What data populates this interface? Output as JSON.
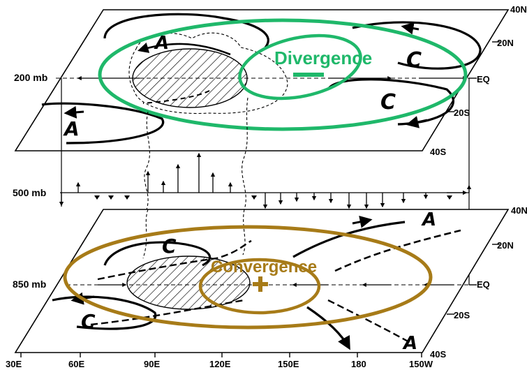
{
  "levels": {
    "upper": "200 mb",
    "middle": "500 mb",
    "lower": "850 mb"
  },
  "latitudes_upper": [
    "40N",
    "20N",
    "EQ",
    "20S",
    "40S"
  ],
  "latitudes_lower": [
    "40N",
    "20N",
    "EQ",
    "20S",
    "40S"
  ],
  "longitudes": [
    "30E",
    "60E",
    "90E",
    "120E",
    "150E",
    "180",
    "150W"
  ],
  "upper_annotation": {
    "text": "Divergence",
    "sign": "−",
    "color": "#1fb86a"
  },
  "lower_annotation": {
    "text": "Convergence",
    "sign": "+",
    "color": "#a77b18"
  },
  "circulation_labels_upper": [
    "A",
    "C",
    "C",
    "A"
  ],
  "circulation_labels_lower": [
    "C",
    "C",
    "A",
    "A"
  ]
}
